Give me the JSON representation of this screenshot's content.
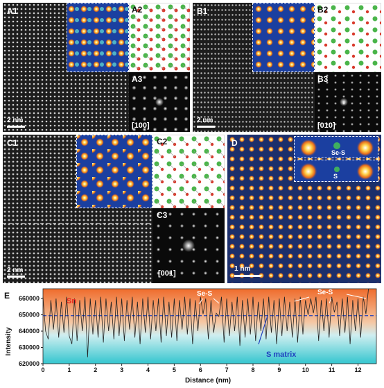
{
  "panels": {
    "a1": "A1",
    "a2": "A2",
    "a3": "A3",
    "b1": "B1",
    "b2": "B2",
    "b3": "B3",
    "c1": "C1",
    "c2": "C2",
    "c3": "C3",
    "d": "D",
    "e": "E"
  },
  "zone_axes": {
    "a3": "[100]",
    "b3": "[010]",
    "c3": "[001]"
  },
  "scale_bars": {
    "a": "2 nm",
    "b": "2 nm",
    "c": "2 nm",
    "d": "1 nm"
  },
  "d_inset_labels": {
    "top": "Se-S",
    "bottom": "S"
  },
  "chart_data": {
    "type": "line",
    "xlabel": "Distance (nm)",
    "ylabel": "Intensity",
    "xlim": [
      0,
      12.7
    ],
    "ylim": [
      620000,
      666000
    ],
    "xticks": [
      "0",
      "1",
      "2",
      "3",
      "4",
      "5",
      "6",
      "7",
      "8",
      "9",
      "10",
      "11",
      "12"
    ],
    "yticks": [
      "620000",
      "630000",
      "640000",
      "650000",
      "660000"
    ],
    "threshold": 649500,
    "region_labels": {
      "top": "Sn",
      "bottom": "S matrix"
    },
    "annotations": [
      "Se-S",
      "Se-S"
    ],
    "colors": {
      "top": "#ef6c2c",
      "bottom": "#34c6cf",
      "threshold": "#1f3fbf",
      "region_top": "#e8261f",
      "region_bottom": "#1f3fbf"
    },
    "series_x": [
      0.0,
      0.1,
      0.2,
      0.3,
      0.4,
      0.5,
      0.6,
      0.7,
      0.8,
      0.9,
      1.0,
      1.1,
      1.2,
      1.3,
      1.4,
      1.5,
      1.6,
      1.7,
      1.8,
      1.9,
      2.0,
      2.1,
      2.2,
      2.3,
      2.4,
      2.5,
      2.6,
      2.7,
      2.8,
      2.9,
      3.0,
      3.1,
      3.2,
      3.3,
      3.4,
      3.5,
      3.6,
      3.7,
      3.8,
      3.9,
      4.0,
      4.1,
      4.2,
      4.3,
      4.4,
      4.5,
      4.6,
      4.7,
      4.8,
      4.9,
      5.0,
      5.1,
      5.2,
      5.3,
      5.4,
      5.5,
      5.6,
      5.7,
      5.8,
      5.9,
      6.0,
      6.1,
      6.2,
      6.3,
      6.4,
      6.5,
      6.6,
      6.7,
      6.8,
      6.9,
      7.0,
      7.1,
      7.2,
      7.3,
      7.4,
      7.5,
      7.6,
      7.7,
      7.8,
      7.9,
      8.0,
      8.1,
      8.2,
      8.3,
      8.4,
      8.5,
      8.6,
      8.7,
      8.8,
      8.9,
      9.0,
      9.1,
      9.2,
      9.3,
      9.4,
      9.5,
      9.6,
      9.7,
      9.8,
      9.9,
      10.0,
      10.1,
      10.2,
      10.3,
      10.4,
      10.5,
      10.6,
      10.7,
      10.8,
      10.9,
      11.0,
      11.1,
      11.2,
      11.3,
      11.4,
      11.5,
      11.6,
      11.7,
      11.8,
      11.9,
      12.0,
      12.1,
      12.2,
      12.3,
      12.4,
      12.5,
      12.6
    ],
    "series_y": [
      661000,
      640000,
      635000,
      659000,
      641000,
      660000,
      636000,
      658000,
      639000,
      661000,
      637000,
      632000,
      660000,
      634000,
      659000,
      640000,
      661000,
      624000,
      660000,
      638000,
      659000,
      636000,
      661000,
      633000,
      660000,
      640000,
      658000,
      635000,
      661000,
      637000,
      660000,
      634000,
      659000,
      641000,
      661000,
      636000,
      658000,
      632000,
      660000,
      639000,
      661000,
      635000,
      659000,
      640000,
      660000,
      633000,
      661000,
      637000,
      658000,
      636000,
      660000,
      634000,
      659000,
      641000,
      661000,
      638000,
      660000,
      632000,
      659000,
      640000,
      661000,
      650500,
      660000,
      635000,
      659000,
      639000,
      651000,
      649000,
      661000,
      633000,
      660000,
      637000,
      658000,
      640000,
      661000,
      631000,
      659000,
      636000,
      660000,
      638000,
      661000,
      634000,
      658000,
      640000,
      660000,
      635000,
      661000,
      639000,
      659000,
      632000,
      660000,
      637000,
      661000,
      640000,
      658000,
      636000,
      660000,
      633000,
      661000,
      638000,
      659000,
      650000,
      660000,
      651000,
      661000,
      634000,
      659000,
      640000,
      660000,
      636000,
      661000,
      651500,
      658000,
      637000,
      660000,
      639000,
      661000,
      632000,
      659000,
      640000,
      660000,
      636000,
      661000,
      650500,
      666000
    ]
  }
}
